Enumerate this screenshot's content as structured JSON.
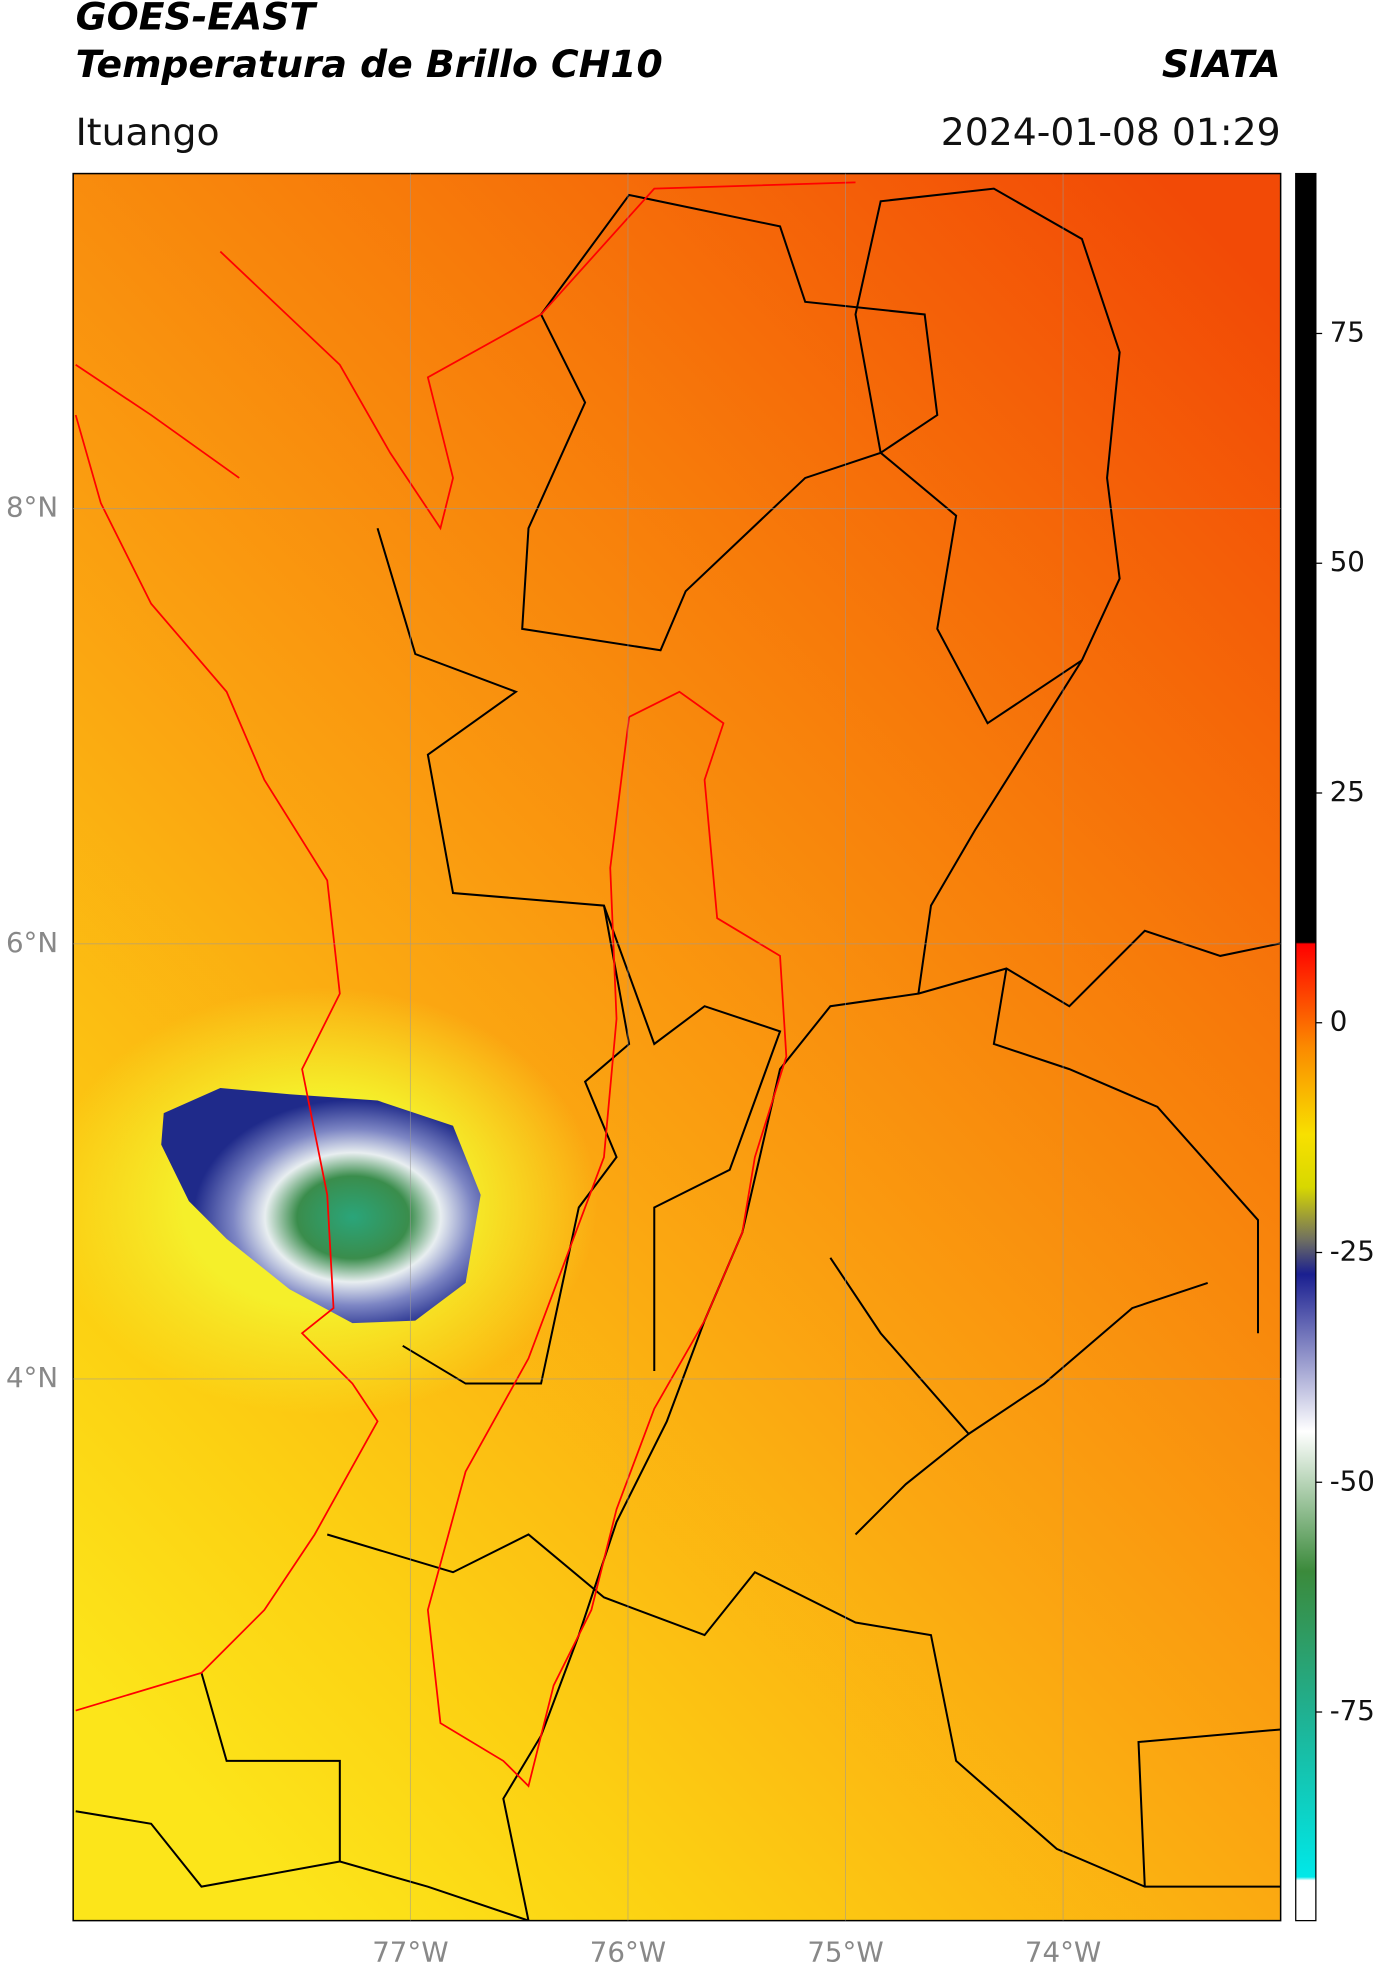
{
  "header": {
    "title": "GOES-EAST",
    "subtitle": "Temperatura de Brillo CH10",
    "brand": "SIATA",
    "location": "Ituango",
    "datetime": "2024-01-08 01:29"
  },
  "map": {
    "xlim": [
      -78.55,
      -73.0
    ],
    "ylim": [
      1.51,
      9.54
    ],
    "xticks": [
      {
        "value": -77,
        "label": "77°W"
      },
      {
        "value": -76,
        "label": "76°W"
      },
      {
        "value": -75,
        "label": "75°W"
      },
      {
        "value": -74,
        "label": "74°W"
      }
    ],
    "yticks": [
      {
        "value": 8,
        "label": "8°N"
      },
      {
        "value": 6,
        "label": "6°N"
      },
      {
        "value": 4,
        "label": "4°N"
      }
    ],
    "grid": true
  },
  "colorbar": {
    "lim": [
      -97.7,
      92.4
    ],
    "ticks": [
      75,
      50,
      25,
      0,
      -25,
      -50,
      -75
    ]
  }
}
